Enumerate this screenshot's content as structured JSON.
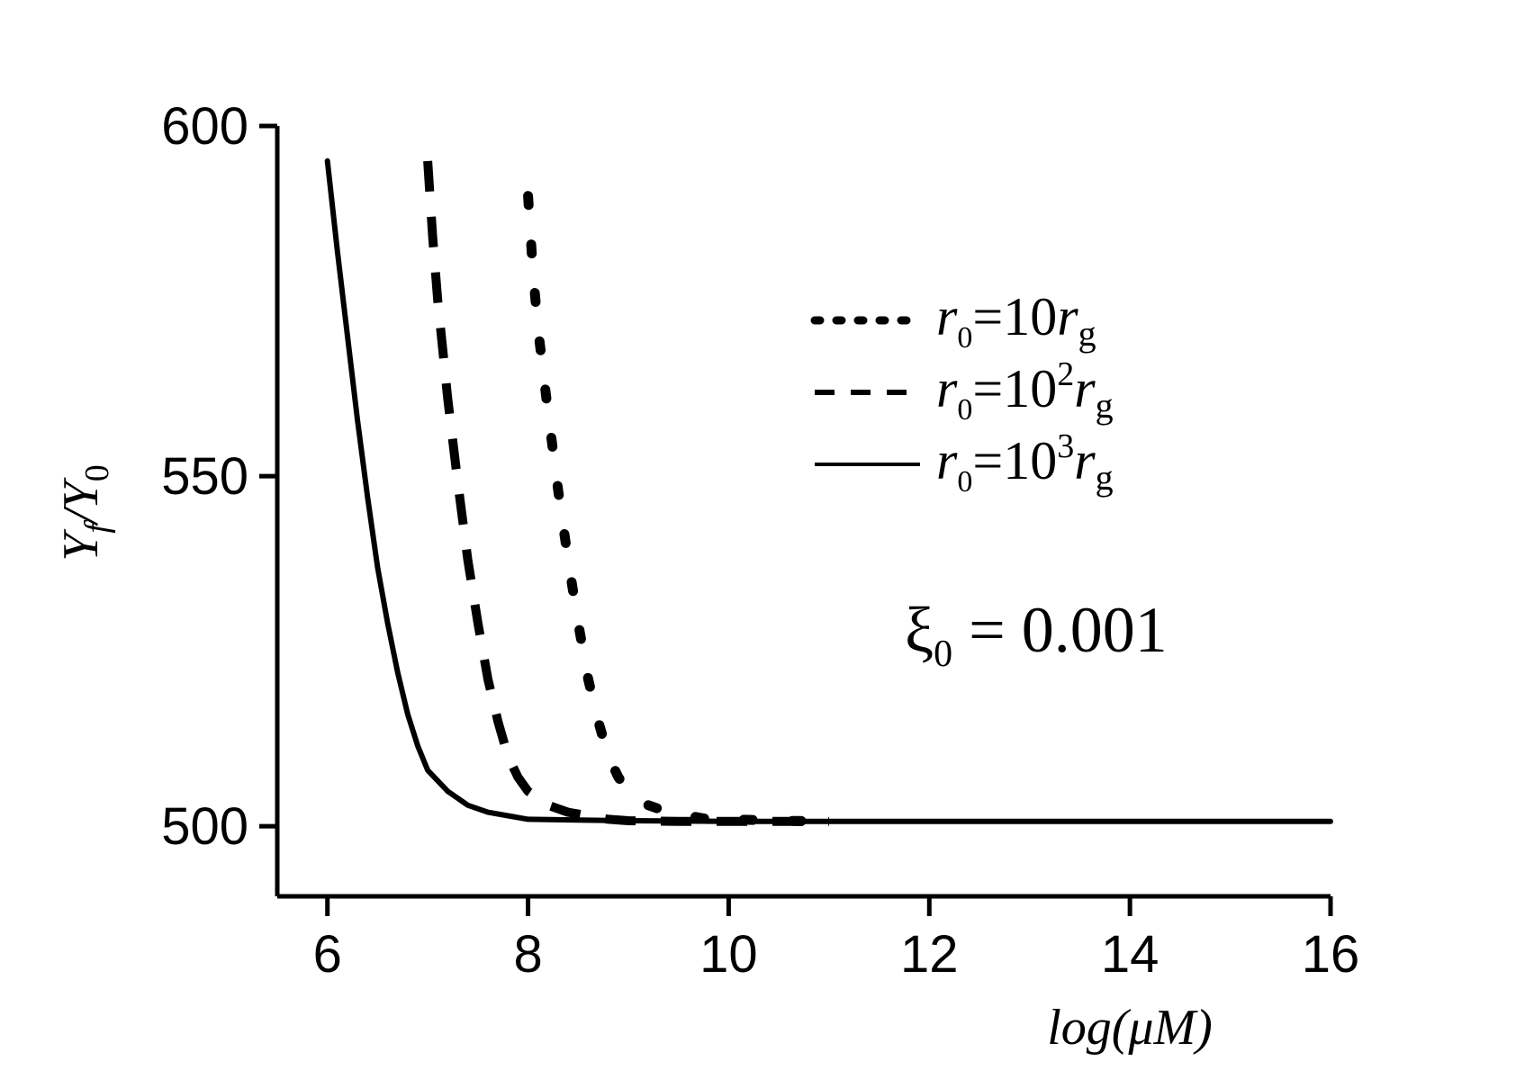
{
  "chart_data": {
    "type": "line",
    "xlabel": "log(μM)",
    "ylabel": {
      "main": "Y",
      "sub1": "f",
      "slash": "/",
      "main2": "Y",
      "sub2": "0"
    },
    "xlim": [
      5.5,
      16
    ],
    "ylim": [
      490,
      600
    ],
    "xticks": [
      6,
      8,
      10,
      12,
      14,
      16
    ],
    "yticks": [
      500,
      550,
      600
    ],
    "xtick_labels": [
      "6",
      "8",
      "10",
      "12",
      "14",
      "16"
    ],
    "ytick_labels": [
      "500",
      "550",
      "600"
    ],
    "annotation": {
      "symbol": "ξ",
      "sub": "0",
      "text": " = 0.001"
    },
    "legend_position": "upper-right",
    "series": [
      {
        "name": "r0=10rg",
        "legend": {
          "r": "r",
          "sub": "0",
          "mid": "=10",
          "sup": "",
          "r2": "r",
          "g": "g"
        },
        "style": "dotted",
        "x": [
          8.0,
          8.05,
          8.1,
          8.2,
          8.3,
          8.4,
          8.5,
          8.6,
          8.7,
          8.8,
          8.9,
          9.0,
          9.2,
          9.4,
          9.6,
          9.8,
          10.0,
          10.5,
          11.0
        ],
        "y": [
          590.0,
          579.0,
          571.0,
          559.0,
          548.0,
          538.0,
          529.0,
          521.0,
          515.0,
          510.0,
          507.0,
          505.0,
          503.0,
          502.0,
          501.5,
          501.0,
          501.0,
          500.8,
          500.7
        ]
      },
      {
        "name": "r0=10^2rg",
        "legend": {
          "r": "r",
          "sub": "0",
          "mid": "=10",
          "sup": "2",
          "r2": "r",
          "g": "g"
        },
        "style": "dashed",
        "x": [
          7.0,
          7.05,
          7.1,
          7.2,
          7.3,
          7.4,
          7.5,
          7.6,
          7.7,
          7.8,
          7.9,
          8.0,
          8.2,
          8.4,
          8.6,
          8.8,
          9.0,
          9.5,
          10.0,
          11.0
        ],
        "y": [
          595.0,
          584.0,
          575.0,
          561.0,
          549.0,
          538.0,
          529.0,
          521.0,
          515.0,
          510.0,
          507.0,
          505.0,
          503.0,
          502.0,
          501.5,
          501.0,
          500.8,
          500.7,
          500.7,
          500.7
        ]
      },
      {
        "name": "r0=10^3rg",
        "legend": {
          "r": "r",
          "sub": "0",
          "mid": "=10",
          "sup": "3",
          "r2": "r",
          "g": "g"
        },
        "style": "solid",
        "x": [
          6.0,
          6.1,
          6.2,
          6.3,
          6.4,
          6.5,
          6.6,
          6.7,
          6.8,
          6.9,
          7.0,
          7.2,
          7.4,
          7.6,
          7.8,
          8.0,
          8.5,
          9.0,
          10.0,
          12.0,
          14.0,
          16.0
        ],
        "y": [
          595.0,
          582.0,
          570.0,
          558.0,
          547.0,
          537.0,
          529.0,
          522.0,
          516.0,
          511.5,
          508.0,
          505.0,
          503.0,
          502.0,
          501.5,
          501.0,
          500.9,
          500.8,
          500.7,
          500.7,
          500.7,
          500.7
        ]
      }
    ]
  }
}
